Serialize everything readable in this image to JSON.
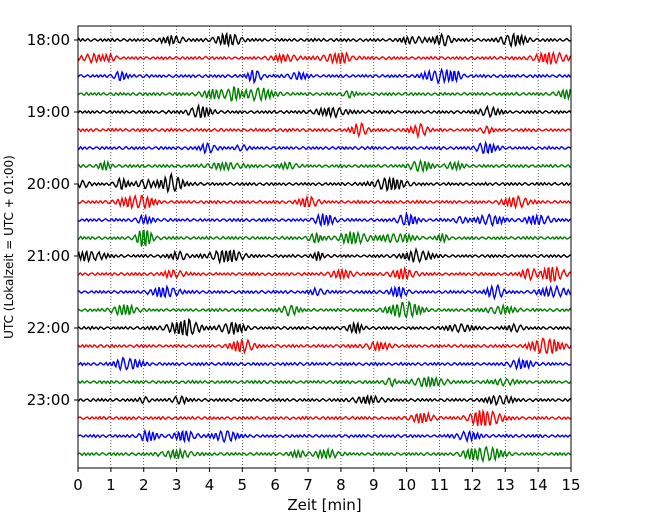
{
  "chart_data": {
    "type": "line",
    "xlabel": "Zeit  [min]",
    "ylabel": "UTC (Lokalzeit = UTC + 01:00)",
    "xlim": [
      0,
      15
    ],
    "x_ticks": [
      "0",
      "1",
      "2",
      "3",
      "4",
      "5",
      "6",
      "7",
      "8",
      "9",
      "10",
      "11",
      "12",
      "13",
      "14",
      "15"
    ],
    "y_tick_labels": [
      "18:00",
      "19:00",
      "20:00",
      "21:00",
      "22:00",
      "23:00"
    ],
    "grid": "vertical dotted at each minute",
    "trace_count": 24,
    "trace_interval_min": 15,
    "trace_colors": [
      "#000000",
      "#ff0000",
      "#0000ff",
      "#008000"
    ]
  }
}
